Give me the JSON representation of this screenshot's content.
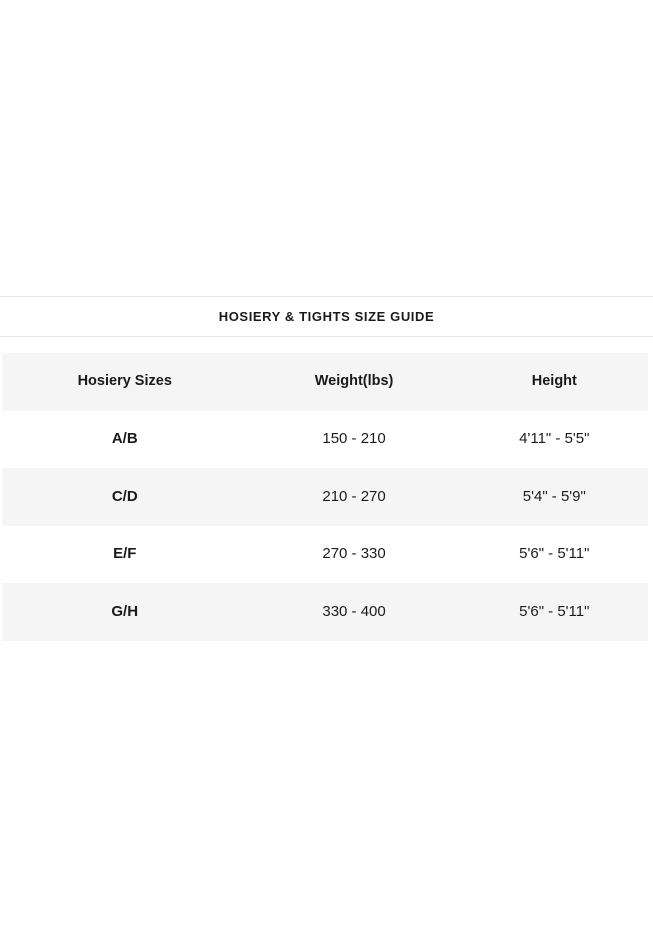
{
  "size_guide": {
    "title": "HOSIERY & TIGHTS SIZE GUIDE",
    "table": {
      "columns": [
        "Hosiery Sizes",
        "Weight(lbs)",
        "Height"
      ],
      "rows": [
        {
          "size": "A/B",
          "weight": "150 - 210",
          "height": "4'11\" - 5'5\""
        },
        {
          "size": "C/D",
          "weight": "210 - 270",
          "height": "5'4\" - 5'9\""
        },
        {
          "size": "E/F",
          "weight": "270 - 330",
          "height": "5'6\" - 5'11\""
        },
        {
          "size": "G/H",
          "weight": "330 - 400",
          "height": "5'6\" - 5'11\""
        }
      ]
    },
    "colors": {
      "row_alt_bg": "#f5f5f5",
      "divider": "#e7e7e7",
      "text": "#1a1a1a"
    }
  }
}
